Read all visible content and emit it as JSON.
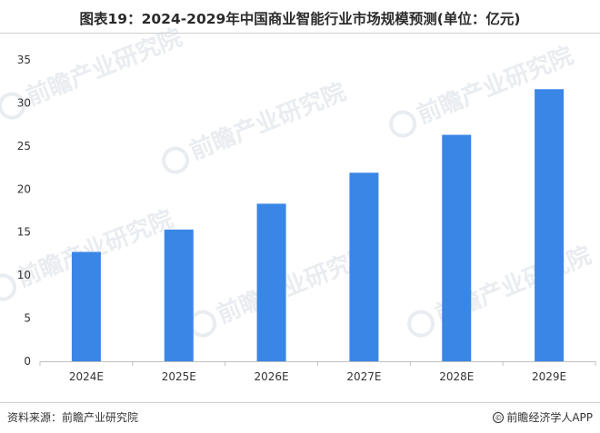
{
  "header": {
    "title": "图表19：2024-2029年中国商业智能行业市场规模预测(单位：亿元)"
  },
  "footer": {
    "source": "资料来源：前瞻产业研究院",
    "copyright_text": "前瞻经济学人APP"
  },
  "watermark": {
    "text": "前瞻产业研究院"
  },
  "colors": {
    "bar": "#3a86e6",
    "axis": "#bfbfbf"
  },
  "chart_data": {
    "type": "bar",
    "title": "图表19：2024-2029年中国商业智能行业市场规模预测(单位：亿元)",
    "categories": [
      "2024E",
      "2025E",
      "2026E",
      "2027E",
      "2028E",
      "2029E"
    ],
    "values": [
      12.7,
      15.3,
      18.3,
      21.9,
      26.3,
      31.6
    ],
    "ylim": [
      0,
      35
    ],
    "yticks": [
      0,
      5,
      10,
      15,
      20,
      25,
      30,
      35
    ],
    "grid": false,
    "xlabel": "",
    "ylabel": ""
  }
}
